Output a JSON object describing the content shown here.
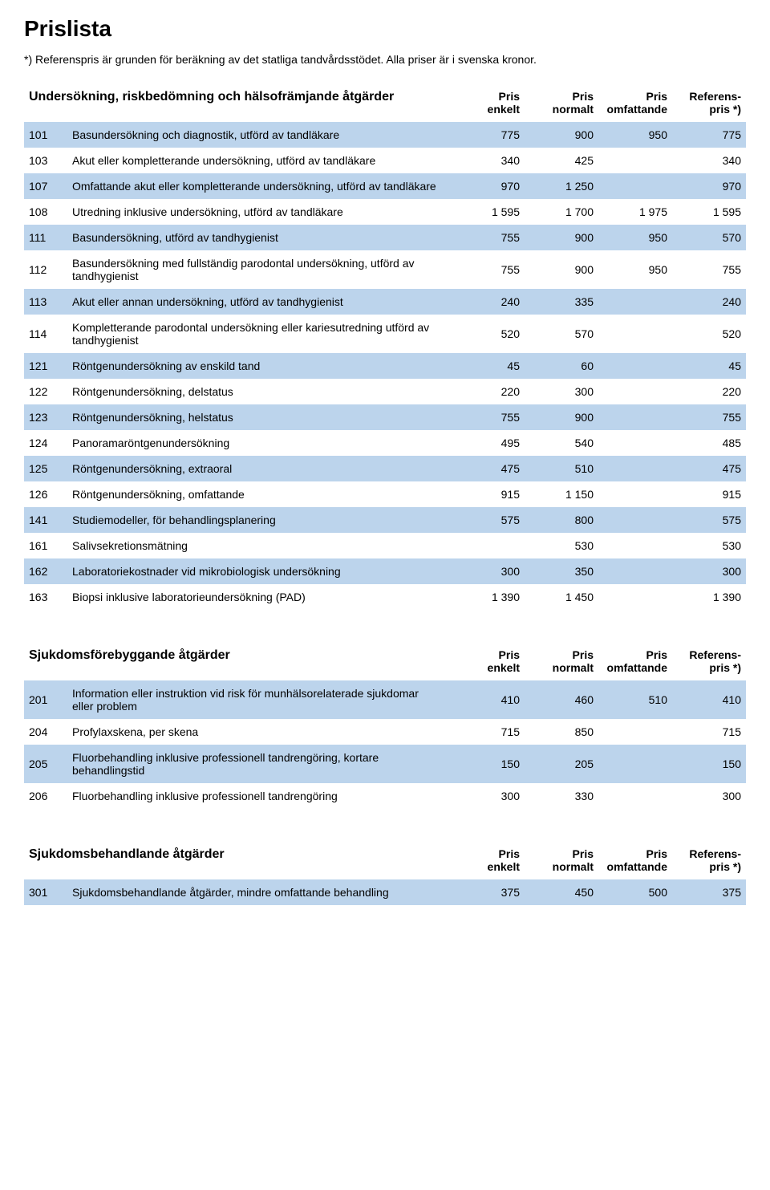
{
  "page_title": "Prislista",
  "note": "*) Referenspris är grunden för beräkning av det statliga tandvårdsstödet. Alla priser är i svenska kronor.",
  "col_headers": {
    "c1a": "Pris",
    "c1b": "enkelt",
    "c2a": "Pris",
    "c2b": "normalt",
    "c3a": "Pris",
    "c3b": "omfattande",
    "c4a": "Referens-",
    "c4b": "pris *)"
  },
  "sections": [
    {
      "title": "Undersökning, riskbedömning och hälsofrämjande åtgärder",
      "rows": [
        {
          "code": "101",
          "desc": "Basundersökning och diagnostik, utförd av tandläkare",
          "c1": "775",
          "c2": "900",
          "c3": "950",
          "c4": "775",
          "zebra": "blue"
        },
        {
          "code": "103",
          "desc": "Akut eller kompletterande undersökning, utförd av tandläkare",
          "c1": "340",
          "c2": "425",
          "c3": "",
          "c4": "340",
          "zebra": "white"
        },
        {
          "code": "107",
          "desc": "Omfattande akut eller kompletterande undersökning, utförd av tandläkare",
          "c1": "970",
          "c2": "1 250",
          "c3": "",
          "c4": "970",
          "zebra": "blue"
        },
        {
          "code": "108",
          "desc": "Utredning inklusive undersökning, utförd av tandläkare",
          "c1": "1 595",
          "c2": "1 700",
          "c3": "1 975",
          "c4": "1 595",
          "zebra": "white"
        },
        {
          "code": "111",
          "desc": "Basundersökning, utförd av tandhygienist",
          "c1": "755",
          "c2": "900",
          "c3": "950",
          "c4": "570",
          "zebra": "blue"
        },
        {
          "code": "112",
          "desc": "Basundersökning med fullständig parodontal undersökning, utförd av tandhygienist",
          "c1": "755",
          "c2": "900",
          "c3": "950",
          "c4": "755",
          "zebra": "white"
        },
        {
          "code": "113",
          "desc": "Akut eller annan undersökning, utförd av tandhygienist",
          "c1": "240",
          "c2": "335",
          "c3": "",
          "c4": "240",
          "zebra": "blue"
        },
        {
          "code": "114",
          "desc": "Kompletterande parodontal undersökning eller kariesutredning utförd av tandhygienist",
          "c1": "520",
          "c2": "570",
          "c3": "",
          "c4": "520",
          "zebra": "white"
        },
        {
          "code": "121",
          "desc": "Röntgenundersökning av enskild tand",
          "c1": "45",
          "c2": "60",
          "c3": "",
          "c4": "45",
          "zebra": "blue"
        },
        {
          "code": "122",
          "desc": "Röntgenundersökning, delstatus",
          "c1": "220",
          "c2": "300",
          "c3": "",
          "c4": "220",
          "zebra": "white"
        },
        {
          "code": "123",
          "desc": "Röntgenundersökning, helstatus",
          "c1": "755",
          "c2": "900",
          "c3": "",
          "c4": "755",
          "zebra": "blue"
        },
        {
          "code": "124",
          "desc": "Panoramaröntgenundersökning",
          "c1": "495",
          "c2": "540",
          "c3": "",
          "c4": "485",
          "zebra": "white"
        },
        {
          "code": "125",
          "desc": "Röntgenundersökning, extraoral",
          "c1": "475",
          "c2": "510",
          "c3": "",
          "c4": "475",
          "zebra": "blue"
        },
        {
          "code": "126",
          "desc": "Röntgenundersökning, omfattande",
          "c1": "915",
          "c2": "1 150",
          "c3": "",
          "c4": "915",
          "zebra": "white"
        },
        {
          "code": "141",
          "desc": "Studiemodeller, för behandlingsplanering",
          "c1": "575",
          "c2": "800",
          "c3": "",
          "c4": "575",
          "zebra": "blue"
        },
        {
          "code": "161",
          "desc": "Salivsekretionsmätning",
          "c1": "",
          "c2": "530",
          "c3": "",
          "c4": "530",
          "zebra": "white"
        },
        {
          "code": "162",
          "desc": "Laboratoriekostnader vid mikrobiologisk undersökning",
          "c1": "300",
          "c2": "350",
          "c3": "",
          "c4": "300",
          "zebra": "blue"
        },
        {
          "code": "163",
          "desc": "Biopsi inklusive laboratorieundersökning (PAD)",
          "c1": "1 390",
          "c2": "1 450",
          "c3": "",
          "c4": "1 390",
          "zebra": "white"
        }
      ]
    },
    {
      "title": "Sjukdomsförebyggande åtgärder",
      "rows": [
        {
          "code": "201",
          "desc": "Information eller instruktion vid risk för munhälsorelaterade sjukdomar eller problem",
          "c1": "410",
          "c2": "460",
          "c3": "510",
          "c4": "410",
          "zebra": "blue"
        },
        {
          "code": "204",
          "desc": "Profylaxskena, per skena",
          "c1": "715",
          "c2": "850",
          "c3": "",
          "c4": "715",
          "zebra": "white"
        },
        {
          "code": "205",
          "desc": "Fluorbehandling inklusive professionell tandrengöring, kortare behandlingstid",
          "c1": "150",
          "c2": "205",
          "c3": "",
          "c4": "150",
          "zebra": "blue"
        },
        {
          "code": "206",
          "desc": "Fluorbehandling inklusive professionell tandrengöring",
          "c1": "300",
          "c2": "330",
          "c3": "",
          "c4": "300",
          "zebra": "white"
        }
      ]
    },
    {
      "title": "Sjukdomsbehandlande åtgärder",
      "rows": [
        {
          "code": "301",
          "desc": "Sjukdomsbehandlande åtgärder, mindre omfattande behandling",
          "c1": "375",
          "c2": "450",
          "c3": "500",
          "c4": "375",
          "zebra": "blue"
        }
      ]
    }
  ],
  "colors": {
    "row_blue": "#bcd4ec",
    "row_white": "#ffffff",
    "text": "#000000"
  }
}
